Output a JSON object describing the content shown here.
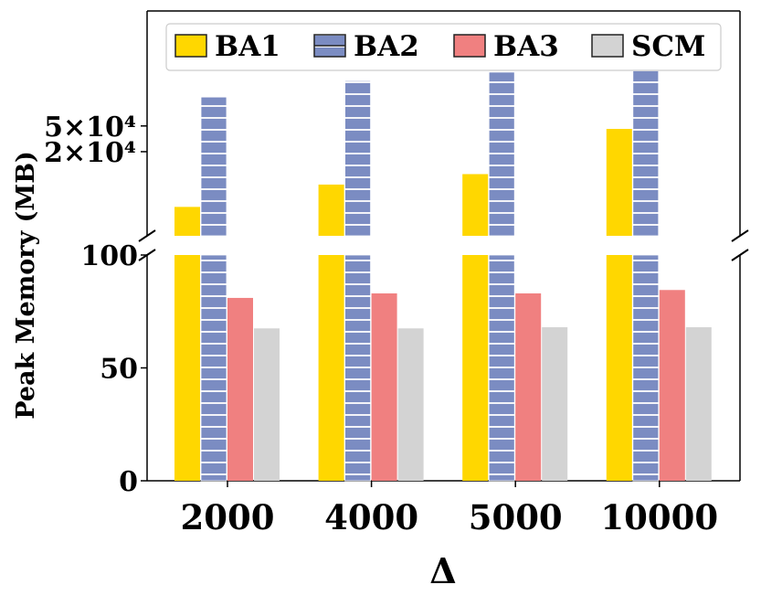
{
  "chart_data": {
    "type": "bar",
    "title": "",
    "xlabel": "Δ",
    "ylabel": "Peak Memory (MB)",
    "categories": [
      "2000",
      "4000",
      "5000",
      "10000"
    ],
    "series": [
      {
        "name": "BA1",
        "color": "#FFD700",
        "hatch": "none",
        "values": [
          2800,
          6200,
          9000,
          45000
        ]
      },
      {
        "name": "BA2",
        "color": "#7B8CC2",
        "hatch": "horizontal",
        "values": [
          140000,
          250000,
          340000,
          800000
        ]
      },
      {
        "name": "BA3",
        "color": "#F08080",
        "hatch": "none",
        "values": [
          81,
          83,
          83,
          84.5
        ]
      },
      {
        "name": "SCM",
        "color": "#D3D3D3",
        "hatch": "none",
        "values": [
          67.5,
          67.5,
          68,
          68
        ]
      }
    ],
    "axes": {
      "broken": true,
      "lower": {
        "scale": "linear",
        "ylim": [
          0,
          100
        ],
        "ticks": [
          0,
          50,
          100
        ],
        "tick_labels": [
          "0",
          "50",
          "100"
        ]
      },
      "upper": {
        "scale": "log",
        "ylim": [
          1000,
          3000000
        ],
        "ticks": [
          50000,
          20000
        ],
        "tick_labels": [
          "5×10⁴",
          "2×10⁴"
        ]
      }
    },
    "legend": {
      "placement": "top",
      "entries": [
        "BA1",
        "BA2",
        "BA3",
        "SCM"
      ]
    },
    "grid": false
  }
}
